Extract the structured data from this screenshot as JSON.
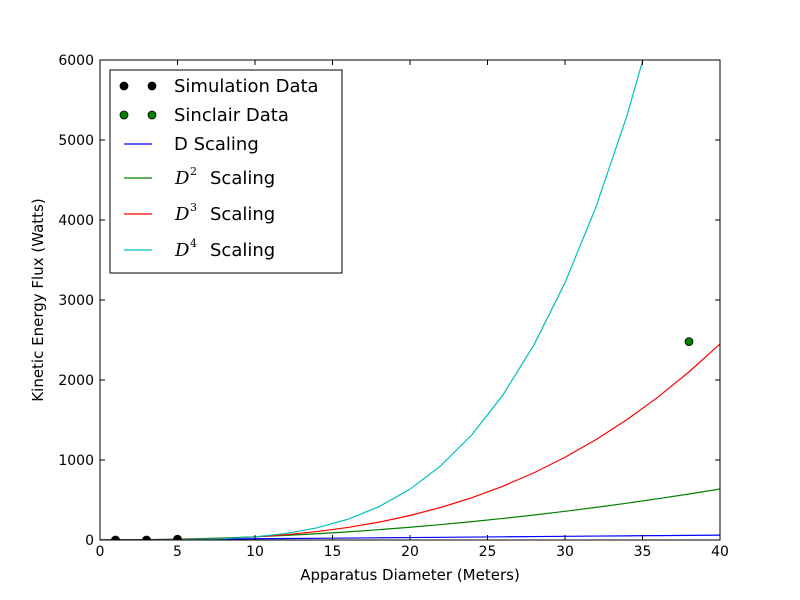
{
  "chart_data": {
    "type": "line",
    "xlabel": "Apparatus Diameter (Meters)",
    "ylabel": "Kinetic Energy Flux (Watts)",
    "xlim": [
      0,
      40
    ],
    "ylim": [
      0,
      6000
    ],
    "x_ticks": [
      "0",
      "5",
      "10",
      "15",
      "20",
      "25",
      "30",
      "35",
      "40"
    ],
    "y_ticks": [
      "0",
      "1000",
      "2000",
      "3000",
      "4000",
      "5000",
      "6000"
    ],
    "grid": false,
    "legend_position": "top-left",
    "scatter_series": [
      {
        "name": "Simulation Data",
        "color": "#000000",
        "points": [
          [
            1,
            0
          ],
          [
            3,
            0
          ],
          [
            5,
            10
          ]
        ]
      },
      {
        "name": "Sinclair Data",
        "color": "#008000",
        "points": [
          [
            38,
            2480
          ]
        ]
      }
    ],
    "line_series": [
      {
        "name_prefix": "",
        "name_main": "D Scaling",
        "math": "",
        "sup": "",
        "suffix": "",
        "color": "#0000ff",
        "coef": 1.53,
        "power": 1
      },
      {
        "name_prefix": "",
        "name_main": "",
        "math": "D",
        "sup": "2",
        "suffix": "Scaling",
        "color": "#008000",
        "coef": 0.3984,
        "power": 2
      },
      {
        "name_prefix": "",
        "name_main": "",
        "math": "D",
        "sup": "3",
        "suffix": "Scaling",
        "color": "#ff0000",
        "coef": 0.0383,
        "power": 3
      },
      {
        "name_prefix": "",
        "name_main": "",
        "math": "D",
        "sup": "4",
        "suffix": "Scaling",
        "color": "#00bfbf",
        "coef": 0.00397,
        "power": 4
      }
    ]
  }
}
